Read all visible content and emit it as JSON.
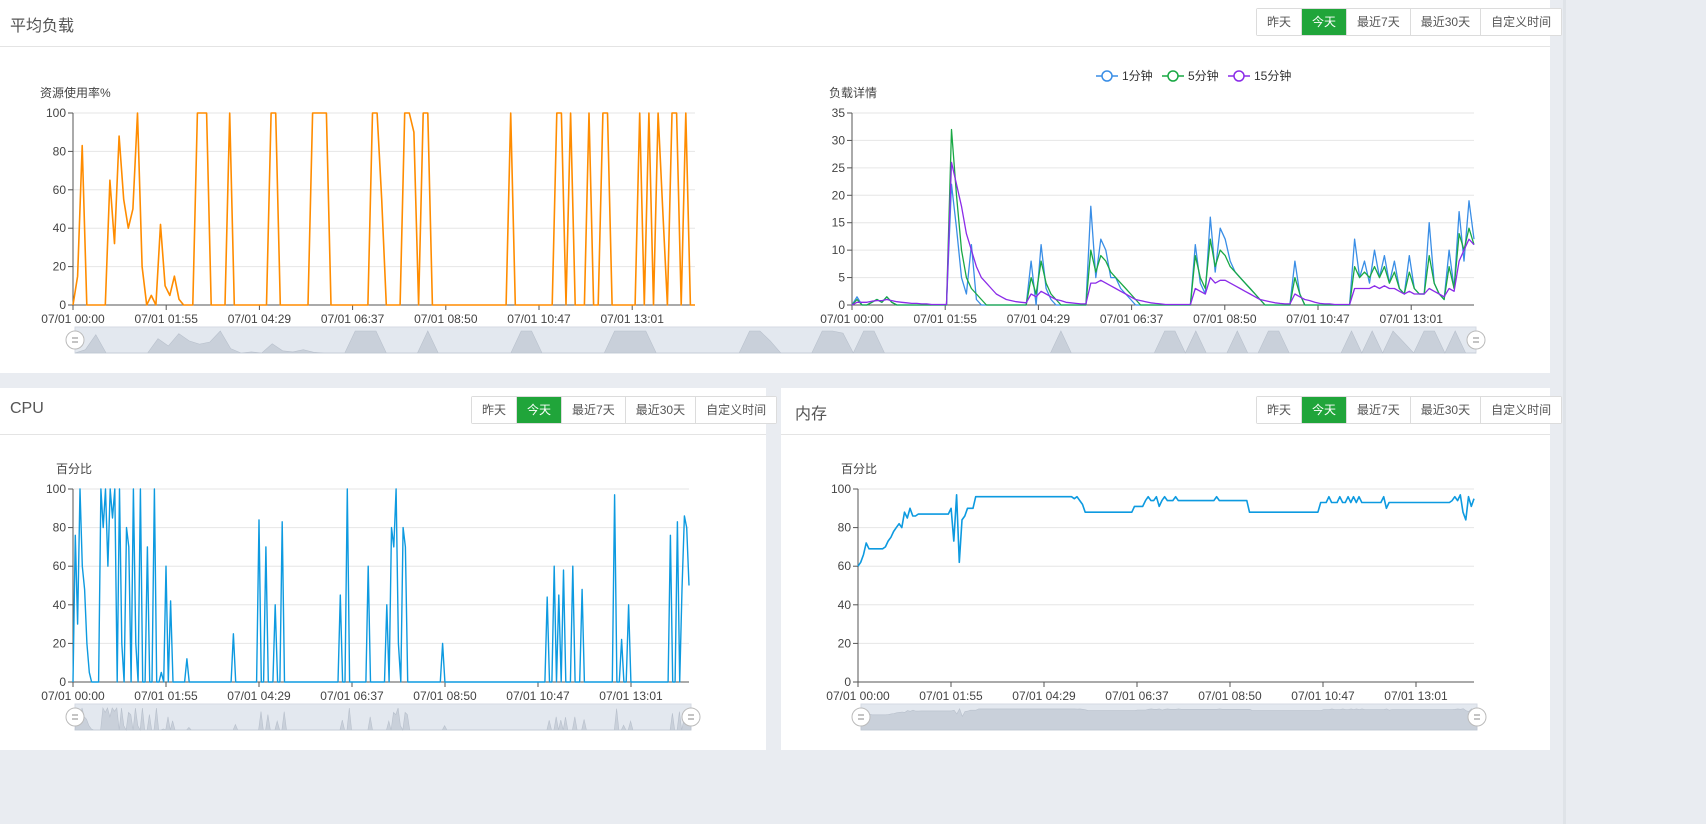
{
  "colors": {
    "load_avg": "#ff8c00",
    "cpu": "#0d9ae0",
    "mem": "#0d9ae0",
    "min1": "#3a8ee6",
    "min5": "#19a844",
    "min15": "#8b2ce8",
    "accent": "#20a53a"
  },
  "time_buttons": [
    "昨天",
    "今天",
    "最近7天",
    "最近30天",
    "自定义时间"
  ],
  "x_ticks": [
    "07/01 00:00",
    "07/01 01:55",
    "07/01 04:29",
    "07/01 06:37",
    "07/01 08:50",
    "07/01 10:47",
    "07/01 13:01"
  ],
  "panels": {
    "load": {
      "title": "平均负载"
    },
    "cpu": {
      "title": "CPU"
    },
    "mem": {
      "title": "内存"
    }
  },
  "chart_data": [
    {
      "id": "load_usage",
      "type": "line",
      "ylabel": "资源使用率%",
      "ylim": [
        0,
        100
      ],
      "y_ticks": [
        0,
        20,
        40,
        60,
        80,
        100
      ],
      "x_ticks": [
        "07/01 00:00",
        "07/01 01:55",
        "07/01 04:29",
        "07/01 06:37",
        "07/01 08:50",
        "07/01 10:47",
        "07/01 13:01"
      ],
      "series": [
        {
          "values": [
            0,
            15,
            83,
            0,
            0,
            0,
            0,
            0,
            65,
            32,
            88,
            55,
            40,
            50,
            100,
            20,
            0,
            5,
            0,
            42,
            10,
            5,
            15,
            3,
            0,
            0,
            0,
            100,
            100,
            100,
            0,
            0,
            0,
            0,
            100,
            0,
            0,
            0,
            0,
            0,
            0,
            0,
            0,
            100,
            100,
            0,
            0,
            0,
            0,
            0,
            0,
            0,
            100,
            100,
            100,
            100,
            0,
            0,
            0,
            0,
            0,
            0,
            0,
            0,
            0,
            100,
            100,
            55,
            0,
            0,
            0,
            0,
            100,
            100,
            90,
            0,
            100,
            100,
            0,
            0,
            0,
            0,
            0,
            0,
            0,
            0,
            0,
            0,
            0,
            0,
            0,
            0,
            0,
            0,
            0,
            100,
            0,
            0,
            0,
            0,
            0,
            0,
            0,
            0,
            0,
            100,
            100,
            0,
            100,
            0,
            0,
            0,
            100,
            0,
            0,
            100,
            100,
            0,
            0,
            0,
            0,
            0,
            0,
            100,
            0,
            100,
            0,
            100,
            50,
            0,
            100,
            100,
            0,
            100,
            0,
            0
          ]
        }
      ]
    },
    {
      "id": "load_detail",
      "type": "line",
      "ylabel": "负载详情",
      "ylim": [
        0,
        35
      ],
      "y_ticks": [
        0,
        5,
        10,
        15,
        20,
        25,
        30,
        35
      ],
      "x_ticks": [
        "07/01 00:00",
        "07/01 01:55",
        "07/01 04:29",
        "07/01 06:37",
        "07/01 08:50",
        "07/01 10:47",
        "07/01 13:01"
      ],
      "legend": [
        "1分钟",
        "5分钟",
        "15分钟"
      ],
      "series": [
        {
          "name": "1分钟",
          "values": [
            0,
            1.5,
            0,
            0,
            0.5,
            1,
            0.5,
            1.5,
            0.5,
            0,
            0,
            0,
            0,
            0,
            0,
            0,
            0,
            0,
            0,
            0,
            22,
            14,
            5,
            2,
            11,
            1,
            0,
            0,
            0,
            0,
            0,
            0,
            0,
            0,
            0,
            0,
            8,
            0,
            11,
            3,
            1,
            0,
            0,
            0,
            0,
            0,
            0,
            0,
            18,
            5,
            12,
            10,
            5,
            5,
            3,
            2,
            1,
            0,
            0,
            0,
            0,
            0,
            0,
            0,
            0,
            0,
            0,
            0,
            0,
            11,
            4,
            2,
            16,
            6,
            14,
            12,
            8,
            6,
            5,
            4,
            3,
            2,
            1,
            0,
            0,
            0,
            0,
            0,
            0,
            8,
            2,
            0,
            0,
            0,
            0,
            0,
            0,
            0,
            0,
            0,
            0,
            12,
            5,
            8,
            4,
            10,
            5,
            9,
            4,
            8,
            3,
            2,
            9,
            3,
            2,
            2,
            15,
            4,
            2,
            1,
            10,
            3,
            17,
            8,
            19,
            12
          ]
        },
        {
          "name": "5分钟",
          "values": [
            0,
            1,
            0,
            0,
            0.5,
            1,
            0.5,
            1.5,
            0.5,
            0,
            0,
            0,
            0,
            0,
            0,
            0,
            0,
            0,
            0,
            0,
            32,
            20,
            10,
            5,
            3,
            2,
            1,
            0,
            0,
            0,
            0,
            0,
            0,
            0,
            0,
            0,
            5,
            2,
            8,
            4,
            2,
            1,
            0,
            0,
            0,
            0,
            0,
            0,
            10,
            6,
            9,
            8,
            6,
            5,
            4,
            3,
            2,
            1,
            0,
            0,
            0,
            0,
            0,
            0,
            0,
            0,
            0,
            0,
            0,
            9,
            5,
            3,
            12,
            7,
            10,
            9,
            7,
            6,
            5,
            4,
            3,
            2,
            1,
            0,
            0,
            0,
            0,
            0,
            0,
            5,
            2,
            0,
            0,
            0,
            0,
            0,
            0,
            0,
            0,
            0,
            0,
            7,
            5,
            6,
            5,
            7,
            5,
            7,
            4,
            6,
            3,
            2,
            6,
            3,
            2,
            2,
            9,
            4,
            2,
            1,
            7,
            3,
            13,
            10,
            14,
            11
          ]
        },
        {
          "name": "15分钟",
          "values": [
            0,
            0.5,
            0.5,
            0.5,
            0.7,
            0.8,
            0.8,
            1,
            0.8,
            0.6,
            0.5,
            0.4,
            0.3,
            0.3,
            0.2,
            0.2,
            0.1,
            0.1,
            0.1,
            0.1,
            26,
            22,
            18,
            13,
            10,
            7,
            5,
            4,
            3,
            2,
            1.5,
            1,
            0.8,
            0.6,
            0.5,
            0.4,
            2,
            1.5,
            2.5,
            2,
            1.5,
            1,
            0.8,
            0.5,
            0.4,
            0.3,
            0.2,
            0.2,
            4,
            4,
            4.5,
            4,
            3.5,
            3,
            2.5,
            2,
            1.5,
            1,
            0.8,
            0.6,
            0.4,
            0.3,
            0.2,
            0.1,
            0.1,
            0.1,
            0.1,
            0.1,
            0.1,
            3,
            2.5,
            2,
            5,
            4,
            4.5,
            4.5,
            4,
            3.5,
            3,
            2.5,
            2,
            1.5,
            1,
            0.8,
            0.6,
            0.4,
            0.3,
            0.2,
            0.2,
            2,
            1.5,
            1,
            0.8,
            0.5,
            0.3,
            0.2,
            0.2,
            0.1,
            0.1,
            0.1,
            0.1,
            3,
            3,
            3,
            3,
            3.5,
            3,
            3.5,
            3,
            3,
            2.5,
            2,
            2.5,
            2,
            2,
            2,
            3,
            2.5,
            2,
            1.5,
            3,
            2.5,
            8,
            10,
            12,
            11
          ]
        }
      ]
    },
    {
      "id": "cpu",
      "type": "line",
      "ylabel": "百分比",
      "ylim": [
        0,
        100
      ],
      "y_ticks": [
        0,
        20,
        40,
        60,
        80,
        100
      ],
      "x_ticks": [
        "07/01 00:00",
        "07/01 01:55",
        "07/01 04:29",
        "07/01 06:37",
        "07/01 08:50",
        "07/01 10:47",
        "07/01 13:01"
      ],
      "series": [
        {
          "values": [
            0,
            76,
            30,
            100,
            60,
            48,
            20,
            5,
            0,
            0,
            0,
            0,
            100,
            80,
            100,
            60,
            100,
            85,
            100,
            0,
            100,
            20,
            0,
            80,
            70,
            0,
            100,
            20,
            0,
            100,
            0,
            0,
            70,
            0,
            0,
            100,
            0,
            0,
            5,
            0,
            60,
            0,
            42,
            0,
            0,
            0,
            0,
            0,
            0,
            12,
            0,
            0,
            0,
            0,
            0,
            0,
            0,
            0,
            0,
            0,
            0,
            0,
            0,
            0,
            0,
            0,
            0,
            0,
            0,
            25,
            0,
            0,
            0,
            0,
            0,
            0,
            0,
            0,
            0,
            0,
            84,
            0,
            0,
            70,
            0,
            0,
            0,
            40,
            0,
            0,
            83,
            0,
            0,
            0,
            0,
            0,
            0,
            0,
            0,
            0,
            0,
            0,
            0,
            0,
            0,
            0,
            0,
            0,
            0,
            0,
            0,
            0,
            0,
            0,
            0,
            45,
            0,
            0,
            100,
            0,
            0,
            0,
            0,
            0,
            0,
            0,
            0,
            60,
            0,
            0,
            0,
            0,
            0,
            0,
            0,
            40,
            0,
            80,
            70,
            100,
            20,
            0,
            80,
            70,
            0,
            0,
            0,
            0,
            0,
            0,
            0,
            0,
            0,
            0,
            0,
            0,
            0,
            0,
            0,
            20,
            0,
            0,
            0,
            0,
            0,
            0,
            0,
            0,
            0,
            0,
            0,
            0,
            0,
            0,
            0,
            0,
            0,
            0,
            0,
            0,
            0,
            0,
            0,
            0,
            0,
            0,
            0,
            0,
            0,
            0,
            0,
            0,
            0,
            0,
            0,
            0,
            0,
            0,
            0,
            0,
            0,
            0,
            0,
            0,
            44,
            0,
            0,
            60,
            0,
            45,
            0,
            58,
            0,
            0,
            0,
            60,
            0,
            0,
            0,
            48,
            0,
            0,
            0,
            0,
            0,
            0,
            0,
            0,
            0,
            0,
            0,
            0,
            0,
            97,
            0,
            0,
            22,
            0,
            0,
            40,
            0,
            0,
            0,
            0,
            0,
            0,
            0,
            0,
            0,
            0,
            0,
            0,
            0,
            0,
            0,
            0,
            0,
            76,
            0,
            0,
            83,
            0,
            48,
            86,
            80,
            50
          ]
        }
      ]
    },
    {
      "id": "mem",
      "type": "line",
      "ylabel": "百分比",
      "ylim": [
        0,
        100
      ],
      "y_ticks": [
        0,
        20,
        40,
        60,
        80,
        100
      ],
      "x_ticks": [
        "07/01 00:00",
        "07/01 01:55",
        "07/01 04:29",
        "07/01 06:37",
        "07/01 08:50",
        "07/01 10:47",
        "07/01 13:01"
      ],
      "series": [
        {
          "values": [
            60,
            62,
            66,
            72,
            69,
            69,
            69,
            69,
            69,
            69,
            70,
            73,
            75,
            78,
            80,
            82,
            80,
            88,
            85,
            90,
            86,
            86,
            87,
            87,
            87,
            87,
            87,
            87,
            87,
            87,
            87,
            87,
            87,
            87,
            90,
            73,
            97,
            62,
            84,
            86,
            90,
            90,
            90,
            96,
            96,
            96,
            96,
            96,
            96,
            96,
            96,
            96,
            96,
            96,
            96,
            96,
            96,
            96,
            96,
            96,
            96,
            96,
            96,
            96,
            96,
            96,
            96,
            96,
            96,
            96,
            96,
            96,
            96,
            96,
            96,
            96,
            96,
            96,
            96,
            95,
            96,
            94,
            92,
            88,
            88,
            88,
            88,
            88,
            88,
            88,
            88,
            88,
            88,
            88,
            88,
            88,
            88,
            88,
            88,
            88,
            88,
            91,
            91,
            91,
            91,
            94,
            96,
            94,
            94,
            96,
            91,
            94,
            96,
            94,
            94,
            94,
            96,
            94,
            94,
            94,
            94,
            94,
            94,
            94,
            94,
            94,
            94,
            94,
            94,
            94,
            94,
            96,
            94,
            94,
            94,
            94,
            94,
            94,
            94,
            94,
            94,
            94,
            94,
            88,
            88,
            88,
            88,
            88,
            88,
            88,
            88,
            88,
            88,
            88,
            88,
            88,
            88,
            88,
            88,
            88,
            88,
            88,
            88,
            88,
            88,
            88,
            88,
            88,
            88,
            93,
            93,
            93,
            96,
            93,
            93,
            93,
            96,
            93,
            93,
            96,
            93,
            96,
            93,
            96,
            93,
            93,
            93,
            93,
            93,
            93,
            93,
            93,
            96,
            90,
            93,
            93,
            93,
            93,
            93,
            93,
            93,
            93,
            93,
            93,
            93,
            93,
            93,
            93,
            93,
            93,
            93,
            93,
            93,
            93,
            93,
            93,
            93,
            94,
            96,
            94,
            97,
            88,
            84,
            96,
            91,
            95
          ]
        }
      ]
    }
  ]
}
